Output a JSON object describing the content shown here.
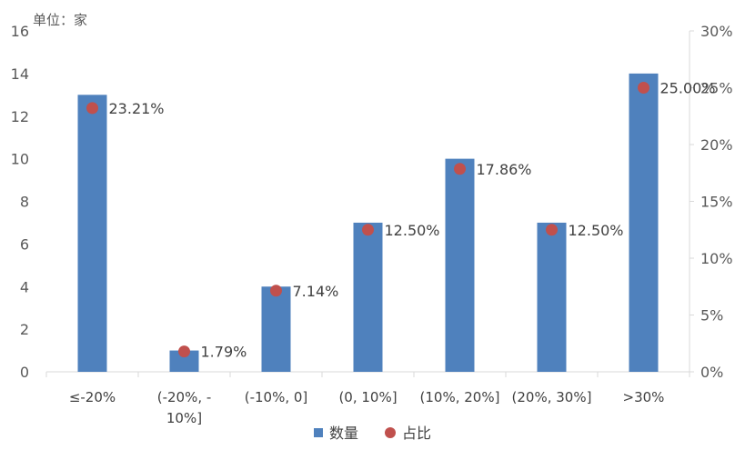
{
  "chart_data": {
    "type": "bar",
    "unit_label": "单位：家",
    "categories": [
      "≤-20%",
      "(-20%, -10%]",
      "(-10%, 0]",
      "(0, 10%]",
      "(10%, 20%]",
      "(20%, 30%]",
      ">30%"
    ],
    "category_lines": [
      [
        "≤-20%"
      ],
      [
        "(-20%, -",
        "10%]"
      ],
      [
        "(-10%, 0]"
      ],
      [
        "(0, 10%]"
      ],
      [
        "(10%, 20%]"
      ],
      [
        "(20%, 30%]"
      ],
      [
        ">30%"
      ]
    ],
    "series": [
      {
        "name": "数量",
        "type": "bar",
        "axis": "left",
        "color": "#4F81BD",
        "values": [
          13,
          1,
          4,
          7,
          10,
          7,
          14
        ]
      },
      {
        "name": "占比",
        "type": "scatter",
        "axis": "right",
        "color": "#C0504D",
        "values": [
          23.21,
          1.79,
          7.14,
          12.5,
          17.86,
          12.5,
          25.0
        ]
      }
    ],
    "data_labels": [
      "23.21%",
      "1.79%",
      "7.14%",
      "12.50%",
      "17.86%",
      "12.50%",
      "25.00%"
    ],
    "y_left": {
      "min": 0,
      "max": 16,
      "step": 2,
      "ticks": [
        "0",
        "2",
        "4",
        "6",
        "8",
        "10",
        "12",
        "14",
        "16"
      ]
    },
    "y_right": {
      "min": 0,
      "max": 30,
      "step": 5,
      "ticks": [
        "0%",
        "5%",
        "10%",
        "15%",
        "20%",
        "25%",
        "30%"
      ]
    },
    "grid": false,
    "legend": {
      "position": "bottom",
      "items": [
        "数量",
        "占比"
      ]
    }
  }
}
